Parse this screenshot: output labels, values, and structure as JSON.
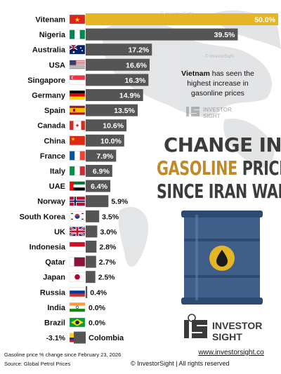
{
  "chart_data": {
    "type": "bar",
    "title_lines": [
      [
        {
          "text": "CHANGE IN ",
          "highlight": false
        }
      ],
      [
        {
          "text": "GASOLINE",
          "highlight": true
        },
        {
          "text": " PRICE",
          "highlight": false
        }
      ],
      [
        {
          "text": "SINCE IRAN WAR",
          "highlight": false
        }
      ]
    ],
    "xlabel": "",
    "ylabel": "",
    "value_suffix": "%",
    "xlim": [
      -3.1,
      50.0
    ],
    "categories": [
      "Vitenam",
      "Nigeria",
      "Australia",
      "USA",
      "Singapore",
      "Germany",
      "Spain",
      "Canada",
      "China",
      "France",
      "Italy",
      "UAE",
      "Norway",
      "South Korea",
      "UK",
      "Indonesia",
      "Qatar",
      "Japan",
      "Russia",
      "India",
      "Brazil",
      "Colombia"
    ],
    "values": [
      50.0,
      39.5,
      17.2,
      16.6,
      16.3,
      14.9,
      13.5,
      10.6,
      10.0,
      7.9,
      6.9,
      6.4,
      5.9,
      3.5,
      3.0,
      2.8,
      2.7,
      2.5,
      0.4,
      0.0,
      0.0,
      -3.1
    ],
    "value_labels": [
      "50.0%",
      "39.5%",
      "17.2%",
      "16.6%",
      "16.3%",
      "14.9%",
      "13.5%",
      "10.6%",
      "10.0%",
      "7.9%",
      "6.9%",
      "6.4%",
      "5.9%",
      "3.5%",
      "3.0%",
      "2.8%",
      "2.7%",
      "2.5%",
      "0.4%",
      "0.0%",
      "0.0%",
      "-3.1%"
    ],
    "highlight_category": "Vitenam",
    "colors": {
      "bar": "#555555",
      "highlight": "#e5b528",
      "accent": "#c0892a",
      "text": "#111111"
    },
    "annotation": {
      "bold": "Vietnam",
      "rest": " has seen the highest increase in gasonline prices"
    }
  },
  "flags": [
    "vn",
    "ng",
    "au",
    "us",
    "sg",
    "de",
    "es",
    "ca",
    "cn",
    "fr",
    "it",
    "ae",
    "no",
    "kr",
    "gb",
    "id",
    "qa",
    "jp",
    "ru",
    "in",
    "br",
    "co"
  ],
  "watermark": "© InvestorSight",
  "brand": {
    "name_line1": "INVESTOR",
    "name_line2": "SIGHT",
    "small_name_line1": "INVESTOR",
    "small_name_line2": "SIGHT",
    "website": "www.investorsight.co"
  },
  "footer": {
    "note": "Gasoline price % change since February 23, 2026",
    "source": "Source: Global Petrol Prices",
    "copyright": "© InvestorSight | All rights reserved"
  },
  "illustration": "oil-barrel-icon"
}
